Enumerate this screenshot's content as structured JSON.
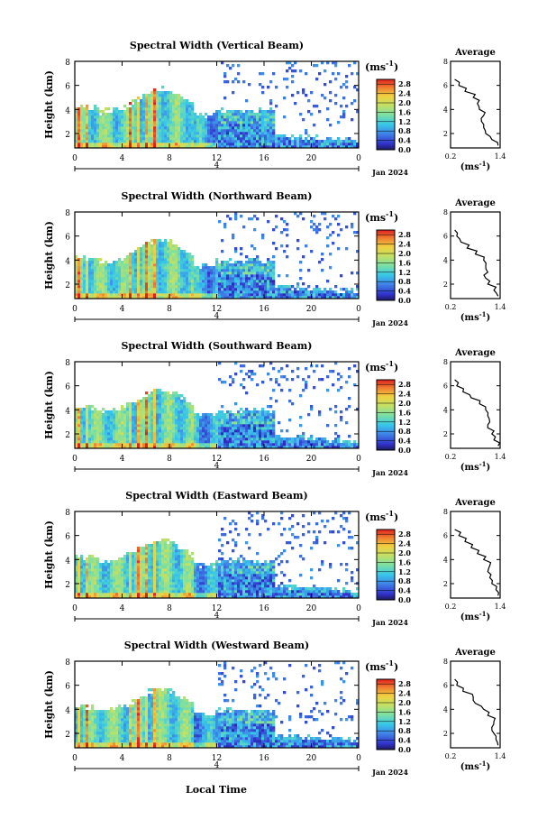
{
  "figure": {
    "x_axis_title": "Local Time",
    "date_label": "Jan 2024",
    "day_label": "4",
    "colorbar_unit": "(ms",
    "colorbar_unit_exp": "-1",
    "avg_title": "Average",
    "avg_xlabel": "(ms",
    "avg_xlabel_exp": "-1"
  },
  "chart_data": [
    {
      "type": "heatmap",
      "title": "Spectral Width (Vertical Beam)",
      "xlabel": "",
      "ylabel": "Height (km)",
      "x_ticks": [
        "0",
        "4",
        "8",
        "12",
        "16",
        "20",
        "0"
      ],
      "y_ticks": [
        "2",
        "4",
        "6",
        "8"
      ],
      "xlim": [
        0,
        24
      ],
      "ylim": [
        0.8,
        8
      ],
      "colorbar": {
        "ticks": [
          "0.0",
          "0.4",
          "0.8",
          "1.2",
          "1.6",
          "2.0",
          "2.4",
          "2.8"
        ],
        "range": [
          0,
          3.0
        ]
      },
      "average_profile": {
        "x_ticks": [
          "0.2",
          "1.4"
        ],
        "xlim": [
          0.2,
          1.4
        ],
        "y_ticks": [
          "2",
          "4",
          "6",
          "8"
        ],
        "height": [
          1.0,
          1.5,
          2.0,
          2.5,
          3.0,
          3.5,
          4.0,
          4.5,
          5.0,
          5.5,
          6.0,
          6.5
        ],
        "width": [
          1.35,
          1.2,
          1.05,
          1.0,
          0.95,
          1.0,
          0.9,
          0.85,
          0.75,
          0.55,
          0.4,
          0.3
        ]
      }
    },
    {
      "type": "heatmap",
      "title": "Spectral Width (Northward Beam)",
      "xlabel": "",
      "ylabel": "Height (km)",
      "x_ticks": [
        "0",
        "4",
        "8",
        "12",
        "16",
        "20",
        "0"
      ],
      "y_ticks": [
        "2",
        "4",
        "6",
        "8"
      ],
      "xlim": [
        0,
        24
      ],
      "ylim": [
        0.8,
        8
      ],
      "colorbar": {
        "ticks": [
          "0.0",
          "0.4",
          "0.8",
          "1.2",
          "1.6",
          "2.0",
          "2.4",
          "2.8"
        ],
        "range": [
          0,
          3.0
        ]
      },
      "average_profile": {
        "x_ticks": [
          "0.2",
          "1.4"
        ],
        "xlim": [
          0.2,
          1.4
        ],
        "y_ticks": [
          "2",
          "4",
          "6",
          "8"
        ],
        "height": [
          1.0,
          1.5,
          2.0,
          2.5,
          3.0,
          3.5,
          4.0,
          4.5,
          5.0,
          5.5,
          6.0,
          6.5
        ],
        "width": [
          1.35,
          1.25,
          1.1,
          1.05,
          1.1,
          1.05,
          1.0,
          0.8,
          0.6,
          0.45,
          0.35,
          0.3
        ]
      }
    },
    {
      "type": "heatmap",
      "title": "Spectral Width (Southward Beam)",
      "xlabel": "",
      "ylabel": "Height (km)",
      "x_ticks": [
        "0",
        "4",
        "8",
        "12",
        "16",
        "20",
        "0"
      ],
      "y_ticks": [
        "2",
        "4",
        "6",
        "8"
      ],
      "xlim": [
        0,
        24
      ],
      "ylim": [
        0.8,
        8
      ],
      "colorbar": {
        "ticks": [
          "0.0",
          "0.4",
          "0.8",
          "1.2",
          "1.6",
          "2.0",
          "2.4",
          "2.8"
        ],
        "range": [
          0,
          3.0
        ]
      },
      "average_profile": {
        "x_ticks": [
          "0.2",
          "1.4"
        ],
        "xlim": [
          0.2,
          1.4
        ],
        "y_ticks": [
          "2",
          "4",
          "6",
          "8"
        ],
        "height": [
          1.0,
          1.5,
          2.0,
          2.5,
          3.0,
          3.5,
          4.0,
          4.5,
          5.0,
          5.5,
          6.0,
          6.5
        ],
        "width": [
          1.35,
          1.25,
          1.2,
          1.1,
          1.15,
          1.1,
          1.05,
          0.9,
          0.7,
          0.5,
          0.35,
          0.3
        ]
      }
    },
    {
      "type": "heatmap",
      "title": "Spectral Width (Eastward Beam)",
      "xlabel": "",
      "ylabel": "Height (km)",
      "x_ticks": [
        "0",
        "4",
        "8",
        "12",
        "16",
        "20",
        "0"
      ],
      "y_ticks": [
        "2",
        "4",
        "6",
        "8"
      ],
      "xlim": [
        0,
        24
      ],
      "ylim": [
        0.8,
        8
      ],
      "colorbar": {
        "ticks": [
          "0.0",
          "0.4",
          "0.8",
          "1.2",
          "1.6",
          "2.0",
          "2.4",
          "2.8"
        ],
        "range": [
          0,
          3.0
        ]
      },
      "average_profile": {
        "x_ticks": [
          "0.2",
          "1.4"
        ],
        "xlim": [
          0.2,
          1.4
        ],
        "y_ticks": [
          "2",
          "4",
          "6",
          "8"
        ],
        "height": [
          1.0,
          1.5,
          2.0,
          2.5,
          3.0,
          3.5,
          4.0,
          4.5,
          5.0,
          5.5,
          6.0,
          6.5
        ],
        "width": [
          1.35,
          1.3,
          1.2,
          1.15,
          1.1,
          1.15,
          1.0,
          0.85,
          0.7,
          0.55,
          0.4,
          0.3
        ]
      }
    },
    {
      "type": "heatmap",
      "title": "Spectral Width (Westward Beam)",
      "xlabel": "Local Time",
      "ylabel": "Height (km)",
      "x_ticks": [
        "0",
        "4",
        "8",
        "12",
        "16",
        "20",
        "0"
      ],
      "y_ticks": [
        "2",
        "4",
        "6",
        "8"
      ],
      "xlim": [
        0,
        24
      ],
      "ylim": [
        0.8,
        8
      ],
      "colorbar": {
        "ticks": [
          "0.0",
          "0.4",
          "0.8",
          "1.2",
          "1.6",
          "2.0",
          "2.4",
          "2.8"
        ],
        "range": [
          0,
          3.0
        ]
      },
      "average_profile": {
        "x_ticks": [
          "0.2",
          "1.4"
        ],
        "xlim": [
          0.2,
          1.4
        ],
        "y_ticks": [
          "2",
          "4",
          "6",
          "8"
        ],
        "height": [
          1.0,
          1.5,
          2.0,
          2.5,
          3.0,
          3.5,
          4.0,
          4.5,
          5.0,
          5.5,
          6.0,
          6.5
        ],
        "width": [
          1.35,
          1.3,
          1.25,
          1.2,
          1.25,
          1.1,
          1.0,
          0.8,
          0.75,
          0.5,
          0.35,
          0.3
        ]
      }
    }
  ]
}
